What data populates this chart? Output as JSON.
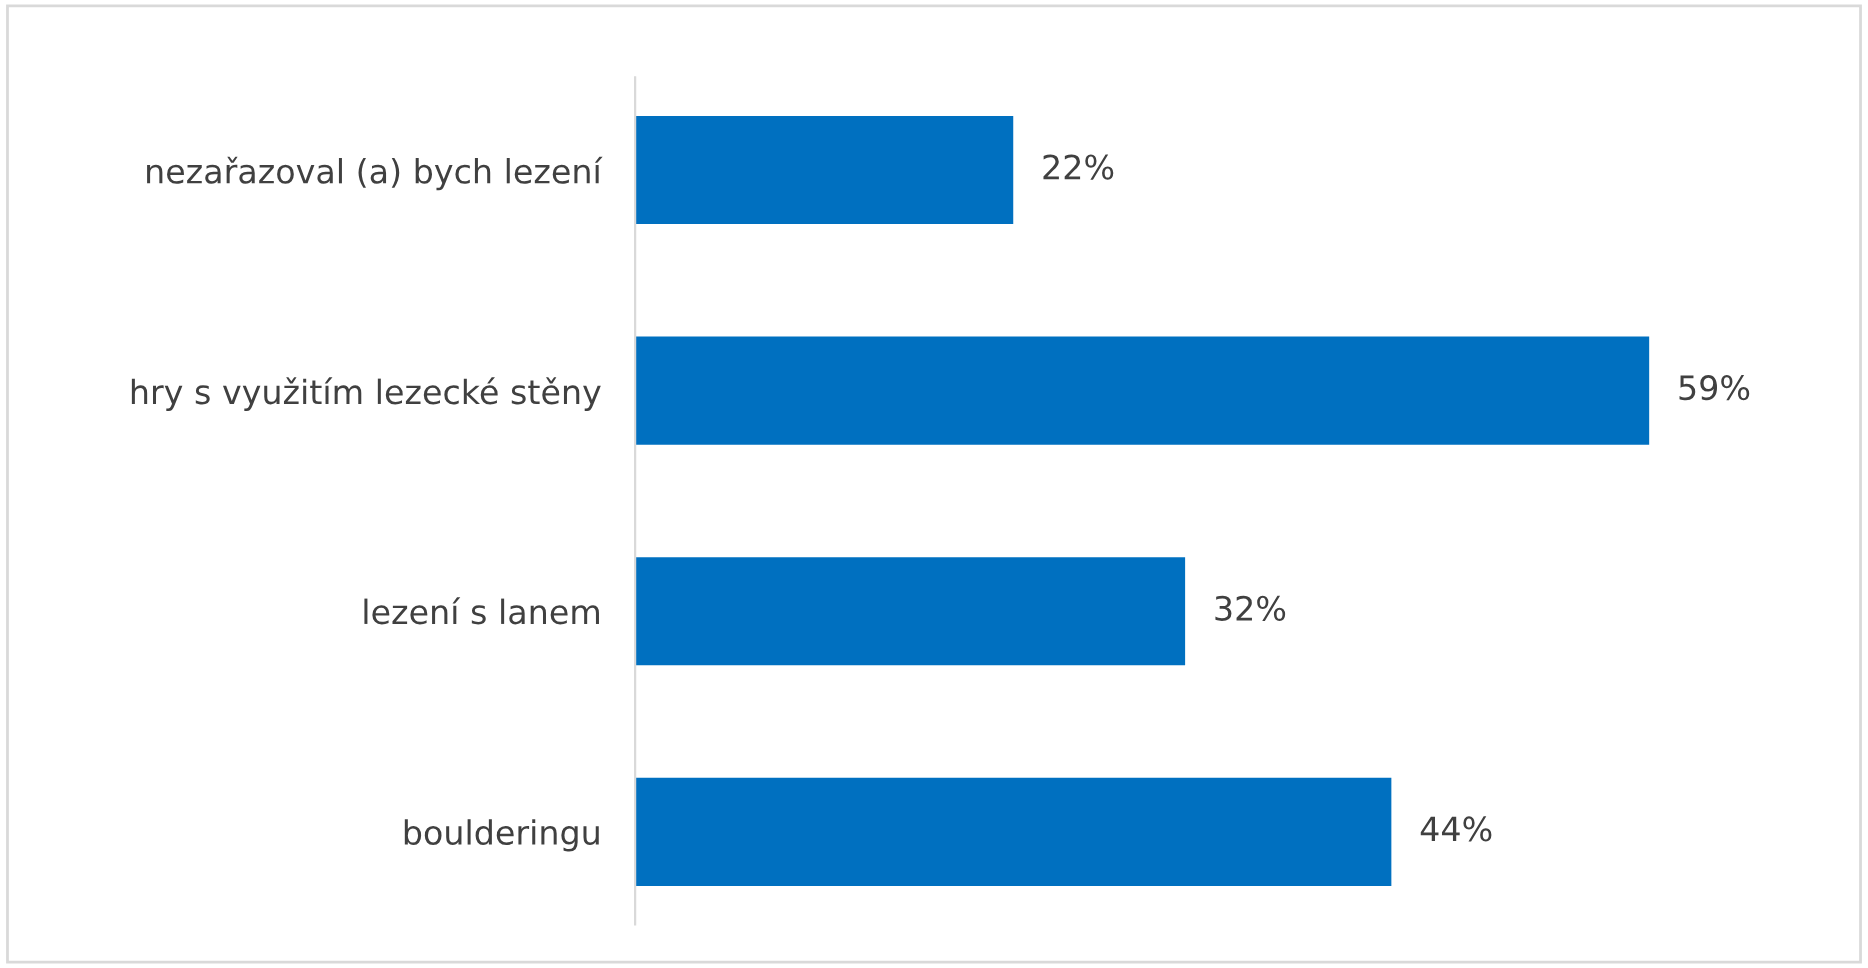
{
  "chart_data": {
    "type": "bar",
    "orientation": "horizontal",
    "categories": [
      "nezařazoval (a) bych lezení",
      "hry s využitím lezecké stěny",
      "lezení s lanem",
      "boulderingu"
    ],
    "values": [
      22,
      59,
      32,
      44
    ],
    "value_labels": [
      "22%",
      "59%",
      "32%",
      "44%"
    ],
    "color": "#0070c0",
    "grid": false,
    "legend": false,
    "tick_labels": "y"
  }
}
